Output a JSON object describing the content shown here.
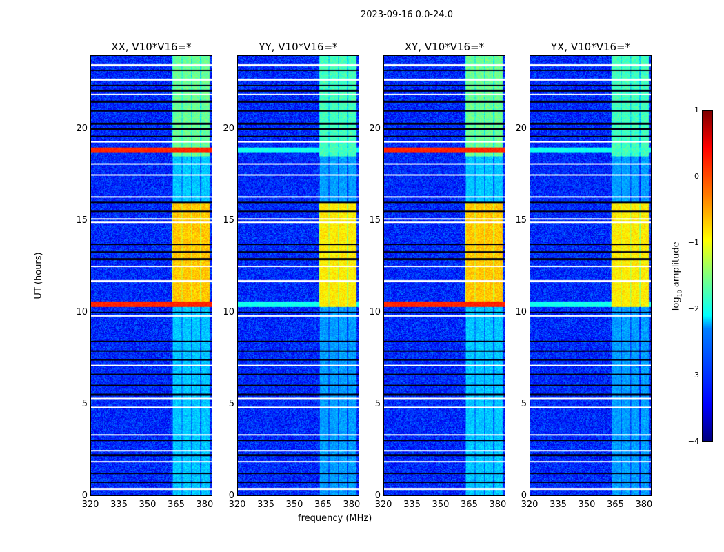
{
  "chart_data": {
    "type": "heatmap",
    "title": "2023-09-16 0.0-24.0",
    "xlabel": "frequency (MHz)",
    "ylabel": "UT (hours)",
    "xlim": [
      320,
      384
    ],
    "ylim": [
      0,
      24
    ],
    "xticks": [
      "320",
      "335",
      "350",
      "365",
      "380"
    ],
    "xtick_values": [
      320,
      335,
      350,
      365,
      380
    ],
    "yticks": [
      "0",
      "5",
      "10",
      "15",
      "20"
    ],
    "ytick_values": [
      0,
      5,
      10,
      15,
      20
    ],
    "panels": [
      {
        "title": "XX, V10*V16=*",
        "rfi_strength": 1.0
      },
      {
        "title": "YY, V10*V16=*",
        "rfi_strength": 0.3
      },
      {
        "title": "XY, V10*V16=*",
        "rfi_strength": 1.0
      },
      {
        "title": "YX, V10*V16=*",
        "rfi_strength": 0.3
      }
    ],
    "colorbar": {
      "label": "log10 amplitude",
      "label_main": "log",
      "label_sub": "10",
      "label_rest": " amplitude",
      "range": [
        -4,
        1
      ],
      "ticks": [
        "1",
        "0",
        "−1",
        "−2",
        "−3",
        "−4"
      ],
      "tick_values": [
        1,
        0,
        -1,
        -2,
        -3,
        -4
      ],
      "colormap": "jet"
    },
    "features": {
      "background_log_amp": -3.2,
      "bright_band_MHz": [
        363,
        383
      ],
      "bright_periods_h": [
        [
          10.3,
          16.0,
          -0.6
        ],
        [
          18.5,
          24.0,
          -1.6
        ],
        [
          0,
          10.3,
          -2.4
        ]
      ],
      "broadband_rfi_h": [
        [
          10.3,
          10.6,
          0.2
        ],
        [
          18.7,
          19.0,
          0.2
        ]
      ],
      "flagged_rows_h": [
        0.35,
        1.85,
        2.45,
        3.3,
        4.8,
        5.3,
        7.1,
        9.8,
        11.7,
        12.5,
        14.9,
        15.1,
        16.3,
        17.5,
        18.1,
        19.3,
        21.9,
        22.7,
        23.5
      ],
      "dark_rows_h": [
        0.7,
        1.2,
        2.2,
        3.0,
        5.5,
        6.0,
        6.6,
        7.4,
        7.9,
        8.4,
        10.0,
        12.9,
        13.3,
        13.7,
        15.5,
        16.0,
        19.6,
        20.0,
        20.3,
        21.0,
        21.5,
        22.1,
        22.4,
        23.2
      ]
    }
  }
}
